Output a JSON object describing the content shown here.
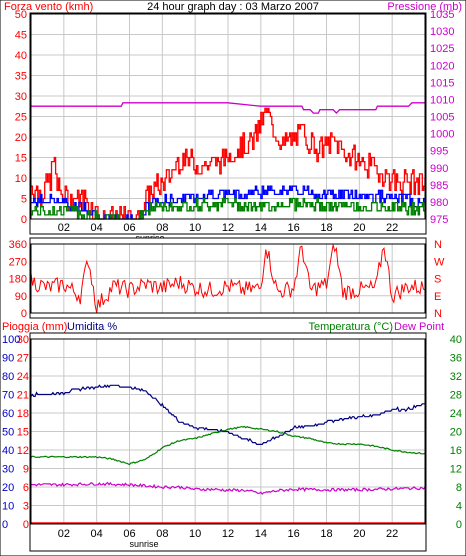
{
  "chart_data": [
    {
      "type": "bar",
      "title": "24 hour graph day : 03 Marzo 2007",
      "ylabel": "Forza vento (kmh)",
      "y2label": "Pressione (mb)",
      "ylim": [
        0,
        50
      ],
      "y2lim": [
        975,
        1035
      ],
      "yticks": [
        0,
        5,
        10,
        15,
        20,
        25,
        30,
        35,
        40,
        45,
        50
      ],
      "y2ticks": [
        975,
        980,
        985,
        990,
        995,
        1000,
        1005,
        1010,
        1015,
        1020,
        1025,
        1030,
        1035
      ],
      "xlim": [
        0,
        24
      ],
      "xticks": [
        "02",
        "04",
        "06",
        "08",
        "10",
        "12",
        "14",
        "16",
        "18",
        "20",
        "22"
      ],
      "annotations": [
        "sunrise"
      ],
      "colors": {
        "gust": "#ff0000",
        "average": "#0000ff",
        "min": "#008000",
        "pressure": "#cc00cc"
      },
      "series": [
        {
          "kind": "gust",
          "keys": [
            [
              0,
              8
            ],
            [
              0.6,
              6
            ],
            [
              1.2,
              10
            ],
            [
              1.4,
              15
            ],
            [
              1.6,
              7
            ],
            [
              2.3,
              5
            ],
            [
              3.3,
              5
            ],
            [
              4.3,
              0
            ],
            [
              6.5,
              0
            ],
            [
              7.3,
              7
            ],
            [
              8.2,
              9
            ],
            [
              9.1,
              15
            ],
            [
              10.2,
              13
            ],
            [
              11.5,
              14
            ],
            [
              12.5,
              17
            ],
            [
              13.5,
              19
            ],
            [
              14.3,
              26
            ],
            [
              15.3,
              18
            ],
            [
              16.5,
              21
            ],
            [
              17.5,
              17
            ],
            [
              18.5,
              19
            ],
            [
              19.5,
              15
            ],
            [
              20.5,
              13
            ],
            [
              21.5,
              11
            ],
            [
              22.3,
              9
            ],
            [
              23.4,
              9
            ],
            [
              24,
              8
            ]
          ]
        },
        {
          "kind": "average",
          "keys": [
            [
              0,
              4
            ],
            [
              1.4,
              5
            ],
            [
              2.3,
              3
            ],
            [
              3.3,
              3
            ],
            [
              4.3,
              0
            ],
            [
              6.5,
              0
            ],
            [
              7.3,
              4
            ],
            [
              9.1,
              5
            ],
            [
              11,
              6
            ],
            [
              13,
              6
            ],
            [
              14.3,
              7
            ],
            [
              16,
              7
            ],
            [
              18,
              6
            ],
            [
              20,
              6
            ],
            [
              22,
              5
            ],
            [
              24,
              4
            ]
          ]
        },
        {
          "kind": "min",
          "keys": [
            [
              0,
              2
            ],
            [
              2.5,
              2
            ],
            [
              4.3,
              0
            ],
            [
              6.5,
              0
            ],
            [
              7.3,
              3
            ],
            [
              9,
              3
            ],
            [
              12,
              4
            ],
            [
              14,
              3
            ],
            [
              16,
              4
            ],
            [
              18,
              3
            ],
            [
              20,
              3
            ],
            [
              22,
              3
            ],
            [
              24,
              2
            ]
          ]
        },
        {
          "kind": "pressure",
          "keys": [
            [
              0,
              1008
            ],
            [
              5.5,
              1008
            ],
            [
              5.6,
              1009
            ],
            [
              12,
              1009
            ],
            [
              14,
              1008
            ],
            [
              16.5,
              1008
            ],
            [
              16.6,
              1007
            ],
            [
              17,
              1007
            ],
            [
              17.2,
              1006
            ],
            [
              17.5,
              1006
            ],
            [
              17.6,
              1007
            ],
            [
              18.4,
              1007
            ],
            [
              18.6,
              1006
            ],
            [
              18.8,
              1007
            ],
            [
              21,
              1007
            ],
            [
              21.1,
              1008
            ],
            [
              23,
              1008
            ],
            [
              23.2,
              1009
            ],
            [
              24,
              1009
            ]
          ]
        }
      ]
    },
    {
      "type": "line",
      "ylim": [
        0,
        360
      ],
      "yticks": [
        0,
        90,
        180,
        270,
        360
      ],
      "dir_labels": [
        "N",
        "W",
        "S",
        "E",
        "N"
      ],
      "xlim": [
        0,
        24
      ],
      "series": [
        {
          "kind": "direction",
          "keys": [
            [
              0,
              170
            ],
            [
              1,
              130
            ],
            [
              2,
              150
            ],
            [
              3,
              90
            ],
            [
              3.5,
              280
            ],
            [
              4,
              30
            ],
            [
              5,
              140
            ],
            [
              6,
              120
            ],
            [
              7,
              150
            ],
            [
              8,
              130
            ],
            [
              9,
              160
            ],
            [
              10,
              130
            ],
            [
              11,
              120
            ],
            [
              12,
              140
            ],
            [
              13,
              120
            ],
            [
              14,
              130
            ],
            [
              14.3,
              360
            ],
            [
              15,
              110
            ],
            [
              16,
              130
            ],
            [
              16.5,
              350
            ],
            [
              17,
              120
            ],
            [
              18,
              150
            ],
            [
              18.5,
              360
            ],
            [
              19,
              110
            ],
            [
              20,
              120
            ],
            [
              21,
              130
            ],
            [
              21.5,
              360
            ],
            [
              22,
              90
            ],
            [
              23,
              140
            ],
            [
              24,
              130
            ]
          ]
        }
      ]
    },
    {
      "type": "line",
      "ylabel": "Pioggia (mm)",
      "y2label": "Umidita %",
      "y3label": "Temperatura (°C)",
      "y4label": "Dew Point",
      "ylim": [
        0,
        30
      ],
      "humidity_lim": [
        0,
        100
      ],
      "temp_lim": [
        0,
        40
      ],
      "rain_ticks": [
        0,
        3,
        6,
        9,
        12,
        15,
        18,
        21,
        24,
        27,
        30
      ],
      "humidity_ticks": [
        0,
        10,
        20,
        30,
        40,
        50,
        60,
        70,
        80,
        90,
        100
      ],
      "temp_ticks": [
        0,
        4,
        8,
        12,
        16,
        20,
        24,
        28,
        32,
        36,
        40
      ],
      "xlim": [
        0,
        24
      ],
      "xticks": [
        "02",
        "04",
        "06",
        "08",
        "10",
        "12",
        "14",
        "16",
        "18",
        "20",
        "22"
      ],
      "annotations": [
        "sunrise"
      ],
      "colors": {
        "humidity": "#000080",
        "temperature": "#008000",
        "dewpoint": "#cc00cc",
        "rain": "#ff0000"
      },
      "series": [
        {
          "kind": "humidity",
          "unit": "%",
          "keys": [
            [
              0,
              70
            ],
            [
              1,
              70
            ],
            [
              2,
              71
            ],
            [
              3,
              73
            ],
            [
              4,
              74
            ],
            [
              5,
              75
            ],
            [
              6,
              74
            ],
            [
              7,
              72
            ],
            [
              8,
              64
            ],
            [
              9,
              56
            ],
            [
              10,
              52
            ],
            [
              11,
              51
            ],
            [
              12,
              50
            ],
            [
              13,
              46
            ],
            [
              14,
              43
            ],
            [
              15,
              47
            ],
            [
              16,
              52
            ],
            [
              17,
              53
            ],
            [
              18,
              55
            ],
            [
              19,
              57
            ],
            [
              20,
              58
            ],
            [
              21,
              59
            ],
            [
              22,
              62
            ],
            [
              23,
              62
            ],
            [
              24,
              65
            ]
          ]
        },
        {
          "kind": "temperature",
          "unit": "°C",
          "keys": [
            [
              0,
              14.5
            ],
            [
              2,
              14.5
            ],
            [
              4,
              14.5
            ],
            [
              5,
              14
            ],
            [
              6,
              13
            ],
            [
              7,
              14
            ],
            [
              8,
              16.5
            ],
            [
              9,
              18
            ],
            [
              10,
              18.5
            ],
            [
              11,
              19.5
            ],
            [
              12,
              20.5
            ],
            [
              13,
              21
            ],
            [
              14,
              20.5
            ],
            [
              15,
              20
            ],
            [
              16,
              19
            ],
            [
              17,
              18.5
            ],
            [
              18,
              17.5
            ],
            [
              19,
              17.3
            ],
            [
              20,
              17.3
            ],
            [
              21,
              16.8
            ],
            [
              22,
              16
            ],
            [
              23,
              15.5
            ],
            [
              24,
              15.2
            ]
          ]
        },
        {
          "kind": "dewpoint",
          "unit": "°C",
          "keys": [
            [
              0,
              8.5
            ],
            [
              2,
              8.5
            ],
            [
              4,
              8.7
            ],
            [
              6,
              8.5
            ],
            [
              8,
              8
            ],
            [
              9,
              8
            ],
            [
              10,
              7.5
            ],
            [
              11,
              7.5
            ],
            [
              12,
              7.3
            ],
            [
              13,
              7.3
            ],
            [
              14,
              6.6
            ],
            [
              15,
              7.2
            ],
            [
              16,
              7.5
            ],
            [
              18,
              7.4
            ],
            [
              20,
              7.4
            ],
            [
              22,
              7.6
            ],
            [
              24,
              7.8
            ]
          ]
        },
        {
          "kind": "rain",
          "unit": "mm",
          "keys": [
            [
              0,
              0
            ],
            [
              24,
              0
            ]
          ]
        }
      ]
    }
  ]
}
